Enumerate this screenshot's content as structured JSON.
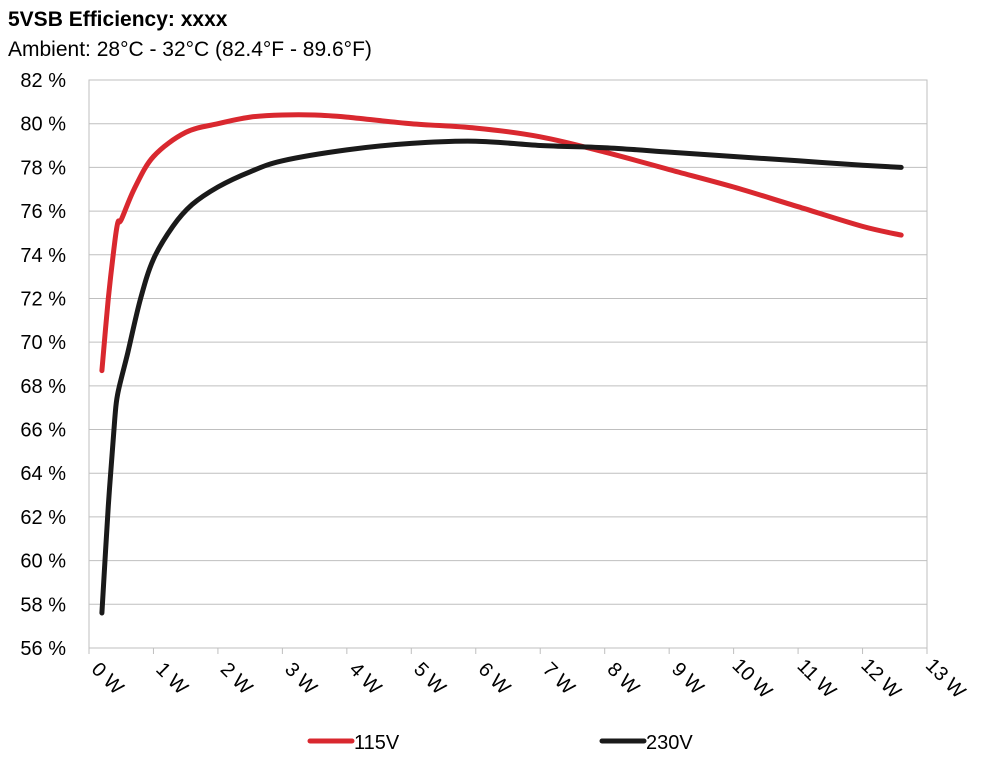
{
  "chart_data": {
    "type": "line",
    "title": "5VSB Efficiency: xxxx",
    "subtitle": "Ambient: 28°C - 32°C (82.4°F - 89.6°F)",
    "xlabel": "",
    "ylabel": "",
    "xlim": [
      0,
      13
    ],
    "ylim": [
      56,
      82
    ],
    "grid": true,
    "legend_position": "bottom",
    "x_tick_values": [
      0,
      1,
      2,
      3,
      4,
      5,
      6,
      7,
      8,
      9,
      10,
      11,
      12,
      13
    ],
    "x_tick_labels": [
      "0 W",
      "1 W",
      "2 W",
      "3 W",
      "4 W",
      "5 W",
      "6 W",
      "7 W",
      "8 W",
      "9 W",
      "10 W",
      "11 W",
      "12 W",
      "13 W"
    ],
    "y_tick_values": [
      56,
      58,
      60,
      62,
      64,
      66,
      68,
      70,
      72,
      74,
      76,
      78,
      80,
      82
    ],
    "y_tick_labels": [
      "56 %",
      "58 %",
      "60 %",
      "62 %",
      "64 %",
      "66 %",
      "68 %",
      "70 %",
      "72 %",
      "74 %",
      "76 %",
      "78 %",
      "80 %",
      "82 %"
    ],
    "series": [
      {
        "name": "115V",
        "color": "#d9282f",
        "x": [
          0.2,
          0.3,
          0.4,
          0.45,
          0.5,
          0.7,
          1.0,
          1.5,
          2.0,
          2.5,
          3.0,
          3.5,
          4.0,
          5.0,
          6.0,
          7.0,
          8.0,
          9.0,
          10.0,
          11.0,
          12.0,
          12.6
        ],
        "y": [
          68.7,
          72.0,
          74.6,
          75.5,
          75.6,
          77.0,
          78.5,
          79.6,
          80.0,
          80.3,
          80.4,
          80.4,
          80.3,
          80.0,
          79.8,
          79.4,
          78.7,
          77.9,
          77.1,
          76.2,
          75.3,
          74.9
        ]
      },
      {
        "name": "230V",
        "color": "#1a1a1a",
        "x": [
          0.2,
          0.3,
          0.4,
          0.45,
          0.6,
          0.8,
          1.0,
          1.3,
          1.6,
          2.0,
          2.5,
          3.0,
          4.0,
          5.0,
          6.0,
          7.0,
          8.0,
          9.0,
          10.0,
          11.0,
          12.0,
          12.6
        ],
        "y": [
          57.6,
          62.5,
          66.5,
          67.7,
          69.5,
          72.0,
          73.8,
          75.3,
          76.3,
          77.1,
          77.8,
          78.3,
          78.8,
          79.1,
          79.2,
          79.0,
          78.9,
          78.7,
          78.5,
          78.3,
          78.1,
          78.0
        ]
      }
    ]
  }
}
